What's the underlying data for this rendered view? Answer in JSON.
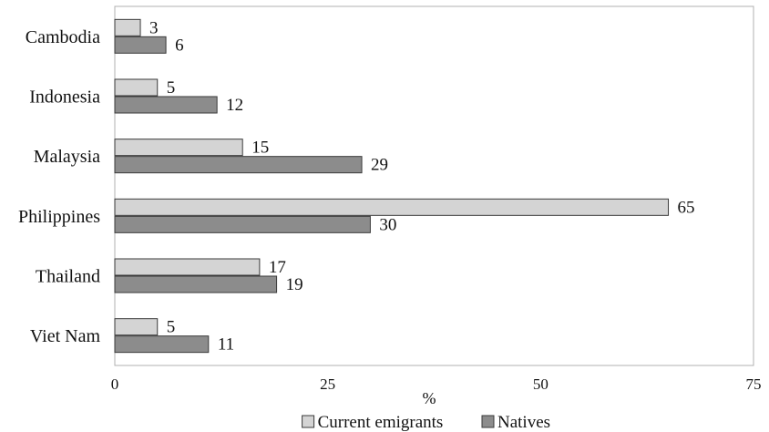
{
  "chart_data": {
    "type": "bar",
    "orientation": "horizontal",
    "categories": [
      "Cambodia",
      "Indonesia",
      "Malaysia",
      "Philippines",
      "Thailand",
      "Viet Nam"
    ],
    "series": [
      {
        "name": "Current emigrants",
        "values": [
          3,
          5,
          15,
          65,
          17,
          5
        ],
        "color": "#d4d4d4"
      },
      {
        "name": "Natives",
        "values": [
          6,
          12,
          29,
          30,
          19,
          11
        ],
        "color": "#8c8c8c"
      }
    ],
    "xlabel": "%",
    "xlim": [
      0,
      75
    ],
    "xticks": [
      "0",
      "25",
      "50",
      "75"
    ],
    "grid": false,
    "legend_position": "bottom",
    "data_labels": true
  }
}
